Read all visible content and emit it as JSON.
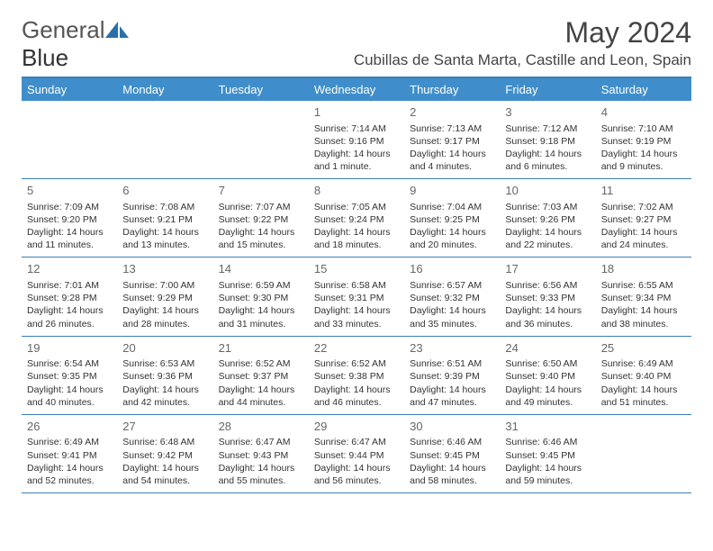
{
  "brand": {
    "part1": "General",
    "part2": "Blue"
  },
  "title": "May 2024",
  "location": "Cubillas de Santa Marta, Castille and Leon, Spain",
  "colors": {
    "header_bg": "#3f8ecb",
    "border": "#3b7fb5",
    "text": "#333333",
    "daynum": "#666666",
    "bg": "#ffffff"
  },
  "weekdays": [
    "Sunday",
    "Monday",
    "Tuesday",
    "Wednesday",
    "Thursday",
    "Friday",
    "Saturday"
  ],
  "weeks": [
    [
      {
        "n": "",
        "sr": "",
        "ss": "",
        "dl": ""
      },
      {
        "n": "",
        "sr": "",
        "ss": "",
        "dl": ""
      },
      {
        "n": "",
        "sr": "",
        "ss": "",
        "dl": ""
      },
      {
        "n": "1",
        "sr": "Sunrise: 7:14 AM",
        "ss": "Sunset: 9:16 PM",
        "dl": "Daylight: 14 hours and 1 minute."
      },
      {
        "n": "2",
        "sr": "Sunrise: 7:13 AM",
        "ss": "Sunset: 9:17 PM",
        "dl": "Daylight: 14 hours and 4 minutes."
      },
      {
        "n": "3",
        "sr": "Sunrise: 7:12 AM",
        "ss": "Sunset: 9:18 PM",
        "dl": "Daylight: 14 hours and 6 minutes."
      },
      {
        "n": "4",
        "sr": "Sunrise: 7:10 AM",
        "ss": "Sunset: 9:19 PM",
        "dl": "Daylight: 14 hours and 9 minutes."
      }
    ],
    [
      {
        "n": "5",
        "sr": "Sunrise: 7:09 AM",
        "ss": "Sunset: 9:20 PM",
        "dl": "Daylight: 14 hours and 11 minutes."
      },
      {
        "n": "6",
        "sr": "Sunrise: 7:08 AM",
        "ss": "Sunset: 9:21 PM",
        "dl": "Daylight: 14 hours and 13 minutes."
      },
      {
        "n": "7",
        "sr": "Sunrise: 7:07 AM",
        "ss": "Sunset: 9:22 PM",
        "dl": "Daylight: 14 hours and 15 minutes."
      },
      {
        "n": "8",
        "sr": "Sunrise: 7:05 AM",
        "ss": "Sunset: 9:24 PM",
        "dl": "Daylight: 14 hours and 18 minutes."
      },
      {
        "n": "9",
        "sr": "Sunrise: 7:04 AM",
        "ss": "Sunset: 9:25 PM",
        "dl": "Daylight: 14 hours and 20 minutes."
      },
      {
        "n": "10",
        "sr": "Sunrise: 7:03 AM",
        "ss": "Sunset: 9:26 PM",
        "dl": "Daylight: 14 hours and 22 minutes."
      },
      {
        "n": "11",
        "sr": "Sunrise: 7:02 AM",
        "ss": "Sunset: 9:27 PM",
        "dl": "Daylight: 14 hours and 24 minutes."
      }
    ],
    [
      {
        "n": "12",
        "sr": "Sunrise: 7:01 AM",
        "ss": "Sunset: 9:28 PM",
        "dl": "Daylight: 14 hours and 26 minutes."
      },
      {
        "n": "13",
        "sr": "Sunrise: 7:00 AM",
        "ss": "Sunset: 9:29 PM",
        "dl": "Daylight: 14 hours and 28 minutes."
      },
      {
        "n": "14",
        "sr": "Sunrise: 6:59 AM",
        "ss": "Sunset: 9:30 PM",
        "dl": "Daylight: 14 hours and 31 minutes."
      },
      {
        "n": "15",
        "sr": "Sunrise: 6:58 AM",
        "ss": "Sunset: 9:31 PM",
        "dl": "Daylight: 14 hours and 33 minutes."
      },
      {
        "n": "16",
        "sr": "Sunrise: 6:57 AM",
        "ss": "Sunset: 9:32 PM",
        "dl": "Daylight: 14 hours and 35 minutes."
      },
      {
        "n": "17",
        "sr": "Sunrise: 6:56 AM",
        "ss": "Sunset: 9:33 PM",
        "dl": "Daylight: 14 hours and 36 minutes."
      },
      {
        "n": "18",
        "sr": "Sunrise: 6:55 AM",
        "ss": "Sunset: 9:34 PM",
        "dl": "Daylight: 14 hours and 38 minutes."
      }
    ],
    [
      {
        "n": "19",
        "sr": "Sunrise: 6:54 AM",
        "ss": "Sunset: 9:35 PM",
        "dl": "Daylight: 14 hours and 40 minutes."
      },
      {
        "n": "20",
        "sr": "Sunrise: 6:53 AM",
        "ss": "Sunset: 9:36 PM",
        "dl": "Daylight: 14 hours and 42 minutes."
      },
      {
        "n": "21",
        "sr": "Sunrise: 6:52 AM",
        "ss": "Sunset: 9:37 PM",
        "dl": "Daylight: 14 hours and 44 minutes."
      },
      {
        "n": "22",
        "sr": "Sunrise: 6:52 AM",
        "ss": "Sunset: 9:38 PM",
        "dl": "Daylight: 14 hours and 46 minutes."
      },
      {
        "n": "23",
        "sr": "Sunrise: 6:51 AM",
        "ss": "Sunset: 9:39 PM",
        "dl": "Daylight: 14 hours and 47 minutes."
      },
      {
        "n": "24",
        "sr": "Sunrise: 6:50 AM",
        "ss": "Sunset: 9:40 PM",
        "dl": "Daylight: 14 hours and 49 minutes."
      },
      {
        "n": "25",
        "sr": "Sunrise: 6:49 AM",
        "ss": "Sunset: 9:40 PM",
        "dl": "Daylight: 14 hours and 51 minutes."
      }
    ],
    [
      {
        "n": "26",
        "sr": "Sunrise: 6:49 AM",
        "ss": "Sunset: 9:41 PM",
        "dl": "Daylight: 14 hours and 52 minutes."
      },
      {
        "n": "27",
        "sr": "Sunrise: 6:48 AM",
        "ss": "Sunset: 9:42 PM",
        "dl": "Daylight: 14 hours and 54 minutes."
      },
      {
        "n": "28",
        "sr": "Sunrise: 6:47 AM",
        "ss": "Sunset: 9:43 PM",
        "dl": "Daylight: 14 hours and 55 minutes."
      },
      {
        "n": "29",
        "sr": "Sunrise: 6:47 AM",
        "ss": "Sunset: 9:44 PM",
        "dl": "Daylight: 14 hours and 56 minutes."
      },
      {
        "n": "30",
        "sr": "Sunrise: 6:46 AM",
        "ss": "Sunset: 9:45 PM",
        "dl": "Daylight: 14 hours and 58 minutes."
      },
      {
        "n": "31",
        "sr": "Sunrise: 6:46 AM",
        "ss": "Sunset: 9:45 PM",
        "dl": "Daylight: 14 hours and 59 minutes."
      },
      {
        "n": "",
        "sr": "",
        "ss": "",
        "dl": ""
      }
    ]
  ]
}
